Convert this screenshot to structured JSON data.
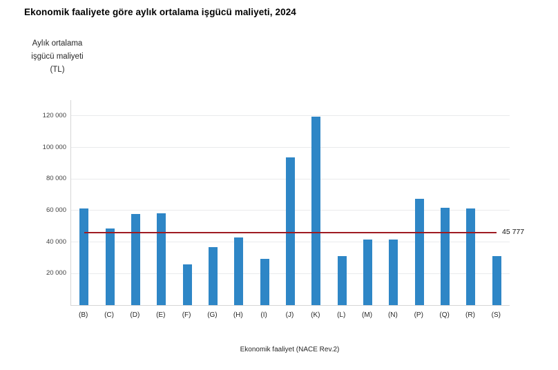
{
  "header": {
    "title": "Ekonomik faaliyete göre aylık ortalama işgücü maliyeti, 2024"
  },
  "chart_data": {
    "type": "bar",
    "title": "Ekonomik faaliyete göre aylık ortalama işgücü maliyeti, 2024",
    "ylabel_lines": [
      "Aylık ortalama",
      "işgücü maliyeti",
      "(TL)"
    ],
    "xlabel": "Ekonomik faaliyet (NACE Rev.2)",
    "categories": [
      "(B)",
      "(C)",
      "(D)",
      "(E)",
      "(F)",
      "(G)",
      "(H)",
      "(I)",
      "(J)",
      "(K)",
      "(L)",
      "(M)",
      "(N)",
      "(P)",
      "(Q)",
      "(R)",
      "(S)"
    ],
    "values": [
      61500,
      48400,
      58000,
      58400,
      26000,
      36600,
      42700,
      29500,
      93800,
      119500,
      31000,
      41800,
      41800,
      67400,
      61800,
      61200,
      31300
    ],
    "ylim": [
      0,
      130000
    ],
    "y_ticks": [
      {
        "value": 20000,
        "label": "20 000"
      },
      {
        "value": 40000,
        "label": "40 000"
      },
      {
        "value": 60000,
        "label": "60 000"
      },
      {
        "value": 80000,
        "label": "80 000"
      },
      {
        "value": 100000,
        "label": "100 000"
      },
      {
        "value": 120000,
        "label": "120 000"
      }
    ],
    "grid": true,
    "legend": false,
    "reference_line": {
      "value": 45777,
      "label": "45 777"
    },
    "colors": {
      "bar": "#2e86c6",
      "reference_line": "#9e1b22",
      "grid": "#e9eaec",
      "axis": "#d6d6d6",
      "text": "#262626"
    }
  }
}
